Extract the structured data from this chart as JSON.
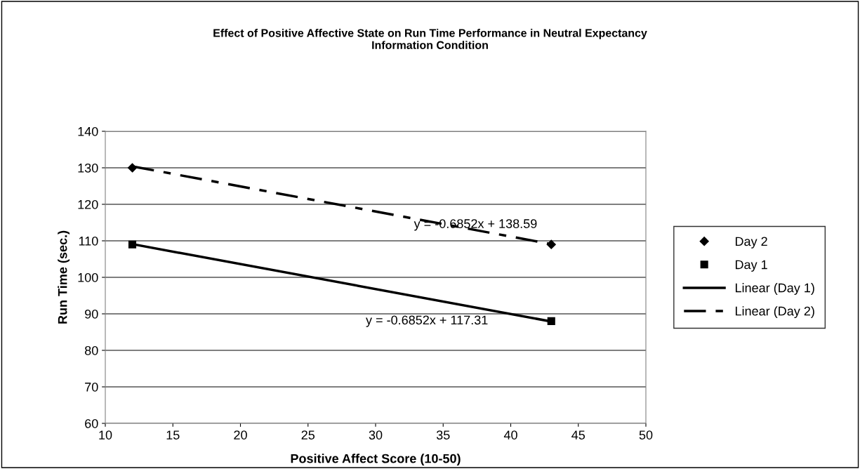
{
  "chart_data": {
    "type": "scatter",
    "title": "Effect of Positive Affective State on Run Time Performance in Neutral Expectancy\nInformation Condition",
    "xlabel": "Positive Affect Score (10-50)",
    "ylabel": "Run Time (sec.)",
    "xlim": [
      10,
      50
    ],
    "xticks": [
      10,
      15,
      20,
      25,
      30,
      35,
      40,
      45,
      50
    ],
    "ylim": [
      60,
      140
    ],
    "yticks": [
      60,
      70,
      80,
      90,
      100,
      110,
      120,
      130,
      140
    ],
    "grid": "y",
    "legend": "right",
    "x": [
      12,
      43
    ],
    "series": [
      {
        "name": "Day 2",
        "marker": "diamond",
        "color": "#000000",
        "values": [
          130,
          109
        ]
      },
      {
        "name": "Day 1",
        "marker": "square",
        "color": "#000000",
        "values": [
          109,
          88
        ]
      },
      {
        "name": "Linear (Day 1)",
        "type": "line",
        "marker": "none",
        "line_style": "solid",
        "color": "#000000",
        "values": [
          109.1,
          87.9
        ]
      },
      {
        "name": "Linear (Day 2)",
        "type": "line",
        "marker": "none",
        "line_style": "dashed",
        "color": "#000000",
        "values": [
          130.4,
          109.1
        ]
      }
    ],
    "annotations": [
      "y = -0.6852x + 138.59",
      "y = -0.6852x + 117.31"
    ]
  }
}
